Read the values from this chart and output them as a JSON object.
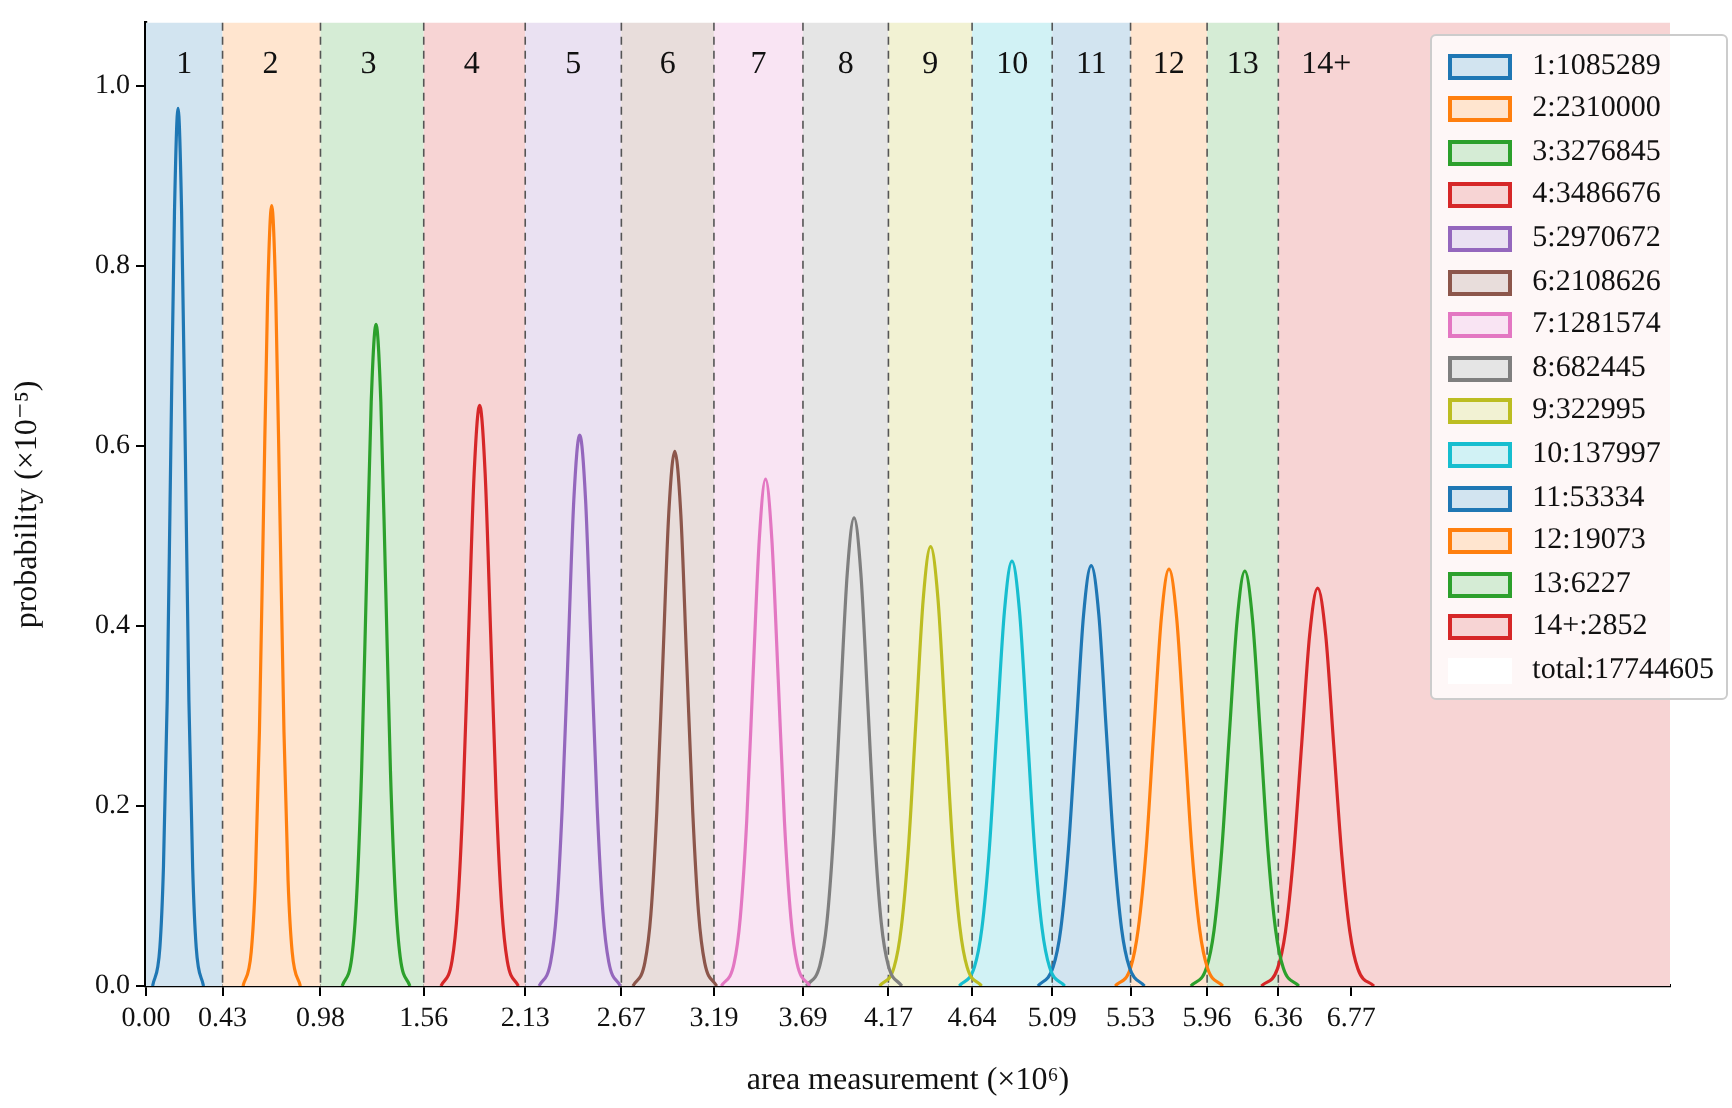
{
  "chart_data": {
    "type": "line",
    "xlabel": "area measurement (×10⁶)",
    "ylabel": "probability (×10⁻⁵)",
    "xlim": [
      0,
      8.56
    ],
    "ylim": [
      0,
      1.07
    ],
    "xticks": [
      {
        "value": 0,
        "label": "0.00"
      },
      0.43,
      0.98,
      1.56,
      2.13,
      2.67,
      3.19,
      3.69,
      4.17,
      4.64,
      5.09,
      5.53,
      5.96,
      6.36,
      6.77
    ],
    "yticks": [
      {
        "value": 0,
        "label": "0.0"
      },
      0.2,
      0.4,
      0.6,
      0.8,
      {
        "value": 1,
        "label": "1.0"
      }
    ],
    "grid": false,
    "legend": "top right",
    "marker": "none",
    "line_style": "solid",
    "series": [
      {
        "name": "1:1085289",
        "color": "#1f77b4",
        "x": [
          0.037,
          0.078,
          0.098,
          0.119,
          0.139,
          0.16,
          0.18,
          0.2,
          0.221,
          0.241,
          0.262,
          0.282,
          0.323
        ],
        "values": [
          0,
          0.043,
          0.132,
          0.317,
          0.591,
          0.86,
          0.975,
          0.86,
          0.591,
          0.317,
          0.132,
          0.043,
          0
        ]
      },
      {
        "name": "2:2310000",
        "color": "#ff7f0e",
        "x": [
          0.545,
          0.591,
          0.614,
          0.637,
          0.66,
          0.683,
          0.706,
          0.729,
          0.752,
          0.775,
          0.798,
          0.821,
          0.867
        ],
        "values": [
          0,
          0.038,
          0.117,
          0.282,
          0.526,
          0.765,
          0.867,
          0.765,
          0.526,
          0.282,
          0.117,
          0.038,
          0
        ]
      },
      {
        "name": "3:3276845",
        "color": "#2ca02c",
        "x": [
          1.102,
          1.156,
          1.183,
          1.211,
          1.238,
          1.265,
          1.292,
          1.319,
          1.346,
          1.373,
          1.401,
          1.428,
          1.482
        ],
        "values": [
          0,
          0.032,
          0.099,
          0.239,
          0.446,
          0.649,
          0.735,
          0.649,
          0.446,
          0.239,
          0.099,
          0.032,
          0
        ]
      },
      {
        "name": "4:3486676",
        "color": "#d62728",
        "x": [
          1.657,
          1.719,
          1.75,
          1.781,
          1.812,
          1.843,
          1.874,
          1.905,
          1.936,
          1.967,
          1.998,
          2.029,
          2.091
        ],
        "values": [
          0,
          0.028,
          0.087,
          0.209,
          0.391,
          0.569,
          0.645,
          0.569,
          0.391,
          0.209,
          0.087,
          0.028,
          0
        ]
      },
      {
        "name": "5:2970672",
        "color": "#9467bd",
        "x": [
          2.208,
          2.273,
          2.306,
          2.338,
          2.371,
          2.403,
          2.436,
          2.469,
          2.501,
          2.534,
          2.566,
          2.599,
          2.664
        ],
        "values": [
          0,
          0.027,
          0.083,
          0.199,
          0.371,
          0.54,
          0.612,
          0.54,
          0.371,
          0.199,
          0.083,
          0.027,
          0
        ]
      },
      {
        "name": "6:2108626",
        "color": "#8c564b",
        "x": [
          2.735,
          2.802,
          2.836,
          2.869,
          2.903,
          2.936,
          2.97,
          3.004,
          3.037,
          3.071,
          3.104,
          3.138,
          3.205
        ],
        "values": [
          0,
          0.026,
          0.08,
          0.193,
          0.36,
          0.524,
          0.594,
          0.524,
          0.36,
          0.193,
          0.08,
          0.026,
          0
        ]
      },
      {
        "name": "7:1281574",
        "color": "#e377c2",
        "x": [
          3.232,
          3.303,
          3.338,
          3.374,
          3.409,
          3.445,
          3.48,
          3.515,
          3.551,
          3.586,
          3.622,
          3.657,
          3.728
        ],
        "values": [
          0,
          0.025,
          0.076,
          0.183,
          0.341,
          0.497,
          0.563,
          0.497,
          0.341,
          0.183,
          0.076,
          0.025,
          0
        ]
      },
      {
        "name": "8:682445",
        "color": "#7f7f7f",
        "x": [
          3.709,
          3.785,
          3.824,
          3.862,
          3.9,
          3.939,
          3.977,
          4.015,
          4.054,
          4.092,
          4.13,
          4.169,
          4.245
        ],
        "values": [
          0,
          0.023,
          0.07,
          0.169,
          0.315,
          0.459,
          0.52,
          0.459,
          0.315,
          0.169,
          0.07,
          0.023,
          0
        ]
      },
      {
        "name": "9:322995",
        "color": "#bcbd22",
        "x": [
          4.121,
          4.202,
          4.243,
          4.284,
          4.325,
          4.366,
          4.407,
          4.448,
          4.489,
          4.53,
          4.571,
          4.612,
          4.693
        ],
        "values": [
          0,
          0.021,
          0.066,
          0.158,
          0.296,
          0.431,
          0.488,
          0.431,
          0.296,
          0.158,
          0.066,
          0.021,
          0
        ]
      },
      {
        "name": "10:137997",
        "color": "#17becf",
        "x": [
          4.568,
          4.653,
          4.695,
          4.737,
          4.779,
          4.822,
          4.864,
          4.906,
          4.949,
          4.991,
          5.033,
          5.075,
          5.16
        ],
        "values": [
          0,
          0.021,
          0.064,
          0.153,
          0.286,
          0.417,
          0.472,
          0.417,
          0.286,
          0.153,
          0.064,
          0.021,
          0
        ]
      },
      {
        "name": "11:53334",
        "color": "#1f77b4",
        "x": [
          5.01,
          5.095,
          5.138,
          5.181,
          5.224,
          5.266,
          5.309,
          5.352,
          5.394,
          5.437,
          5.48,
          5.523,
          5.608
        ],
        "values": [
          0,
          0.021,
          0.063,
          0.152,
          0.283,
          0.412,
          0.467,
          0.412,
          0.283,
          0.152,
          0.063,
          0.021,
          0
        ]
      },
      {
        "name": "12:19073",
        "color": "#ff7f0e",
        "x": [
          5.444,
          5.53,
          5.573,
          5.617,
          5.66,
          5.703,
          5.746,
          5.789,
          5.832,
          5.875,
          5.918,
          5.962,
          6.048
        ],
        "values": [
          0,
          0.02,
          0.063,
          0.15,
          0.281,
          0.409,
          0.463,
          0.409,
          0.281,
          0.15,
          0.063,
          0.02,
          0
        ]
      },
      {
        "name": "13:6227",
        "color": "#2ca02c",
        "x": [
          5.869,
          5.956,
          5.999,
          6.042,
          6.085,
          6.129,
          6.172,
          6.215,
          6.259,
          6.302,
          6.345,
          6.388,
          6.475
        ],
        "values": [
          0,
          0.02,
          0.062,
          0.15,
          0.28,
          0.407,
          0.461,
          0.407,
          0.28,
          0.15,
          0.062,
          0.02,
          0
        ]
      },
      {
        "name": "14+:2852",
        "color": "#d62728",
        "x": [
          6.265,
          6.355,
          6.4,
          6.445,
          6.491,
          6.536,
          6.581,
          6.626,
          6.671,
          6.717,
          6.762,
          6.807,
          6.897
        ],
        "values": [
          0,
          0.019,
          0.06,
          0.144,
          0.268,
          0.39,
          0.442,
          0.39,
          0.268,
          0.144,
          0.06,
          0.019,
          0
        ]
      },
      {
        "name": "total:17744605",
        "color": "#ffffff"
      }
    ],
    "bands": [
      {
        "axis": "x",
        "from": 0,
        "to": 0.43,
        "label": "1",
        "color": "#d2e4f0"
      },
      {
        "axis": "x",
        "from": 0.43,
        "to": 0.98,
        "label": "2",
        "color": "#ffe5cf"
      },
      {
        "axis": "x",
        "from": 0.98,
        "to": 1.56,
        "label": "3",
        "color": "#d5ecd5"
      },
      {
        "axis": "x",
        "from": 1.56,
        "to": 2.13,
        "label": "4",
        "color": "#f7d4d4"
      },
      {
        "axis": "x",
        "from": 2.13,
        "to": 2.67,
        "label": "5",
        "color": "#eae1f2"
      },
      {
        "axis": "x",
        "from": 2.67,
        "to": 3.19,
        "label": "6",
        "color": "#e8dddb"
      },
      {
        "axis": "x",
        "from": 3.19,
        "to": 3.69,
        "label": "7",
        "color": "#f9e4f3"
      },
      {
        "axis": "x",
        "from": 3.69,
        "to": 4.17,
        "label": "8",
        "color": "#e5e5e5"
      },
      {
        "axis": "x",
        "from": 4.17,
        "to": 4.64,
        "label": "9",
        "color": "#f2f2d3"
      },
      {
        "axis": "x",
        "from": 4.64,
        "to": 5.09,
        "label": "10",
        "color": "#d1f2f5"
      },
      {
        "axis": "x",
        "from": 5.09,
        "to": 5.53,
        "label": "11",
        "color": "#d2e4f0"
      },
      {
        "axis": "x",
        "from": 5.53,
        "to": 5.96,
        "label": "12",
        "color": "#ffe5cf"
      },
      {
        "axis": "x",
        "from": 5.96,
        "to": 6.36,
        "label": "13",
        "color": "#d5ecd5"
      },
      {
        "axis": "x",
        "from": 6.36,
        "to": 8.56,
        "label": "14+",
        "color": "#f7d4d4"
      }
    ],
    "ref_lines": [
      {
        "axis": "x",
        "value": 0.43,
        "color": "#555555",
        "line_style": "dashed"
      },
      {
        "axis": "x",
        "value": 0.98,
        "color": "#555555",
        "line_style": "dashed"
      },
      {
        "axis": "x",
        "value": 1.56,
        "color": "#555555",
        "line_style": "dashed"
      },
      {
        "axis": "x",
        "value": 2.13,
        "color": "#555555",
        "line_style": "dashed"
      },
      {
        "axis": "x",
        "value": 2.67,
        "color": "#555555",
        "line_style": "dashed"
      },
      {
        "axis": "x",
        "value": 3.19,
        "color": "#555555",
        "line_style": "dashed"
      },
      {
        "axis": "x",
        "value": 3.69,
        "color": "#555555",
        "line_style": "dashed"
      },
      {
        "axis": "x",
        "value": 4.17,
        "color": "#555555",
        "line_style": "dashed"
      },
      {
        "axis": "x",
        "value": 4.64,
        "color": "#555555",
        "line_style": "dashed"
      },
      {
        "axis": "x",
        "value": 5.09,
        "color": "#555555",
        "line_style": "dashed"
      },
      {
        "axis": "x",
        "value": 5.53,
        "color": "#555555",
        "line_style": "dashed"
      },
      {
        "axis": "x",
        "value": 5.96,
        "color": "#555555",
        "line_style": "dashed"
      },
      {
        "axis": "x",
        "value": 6.36,
        "color": "#555555",
        "line_style": "dashed"
      }
    ]
  }
}
